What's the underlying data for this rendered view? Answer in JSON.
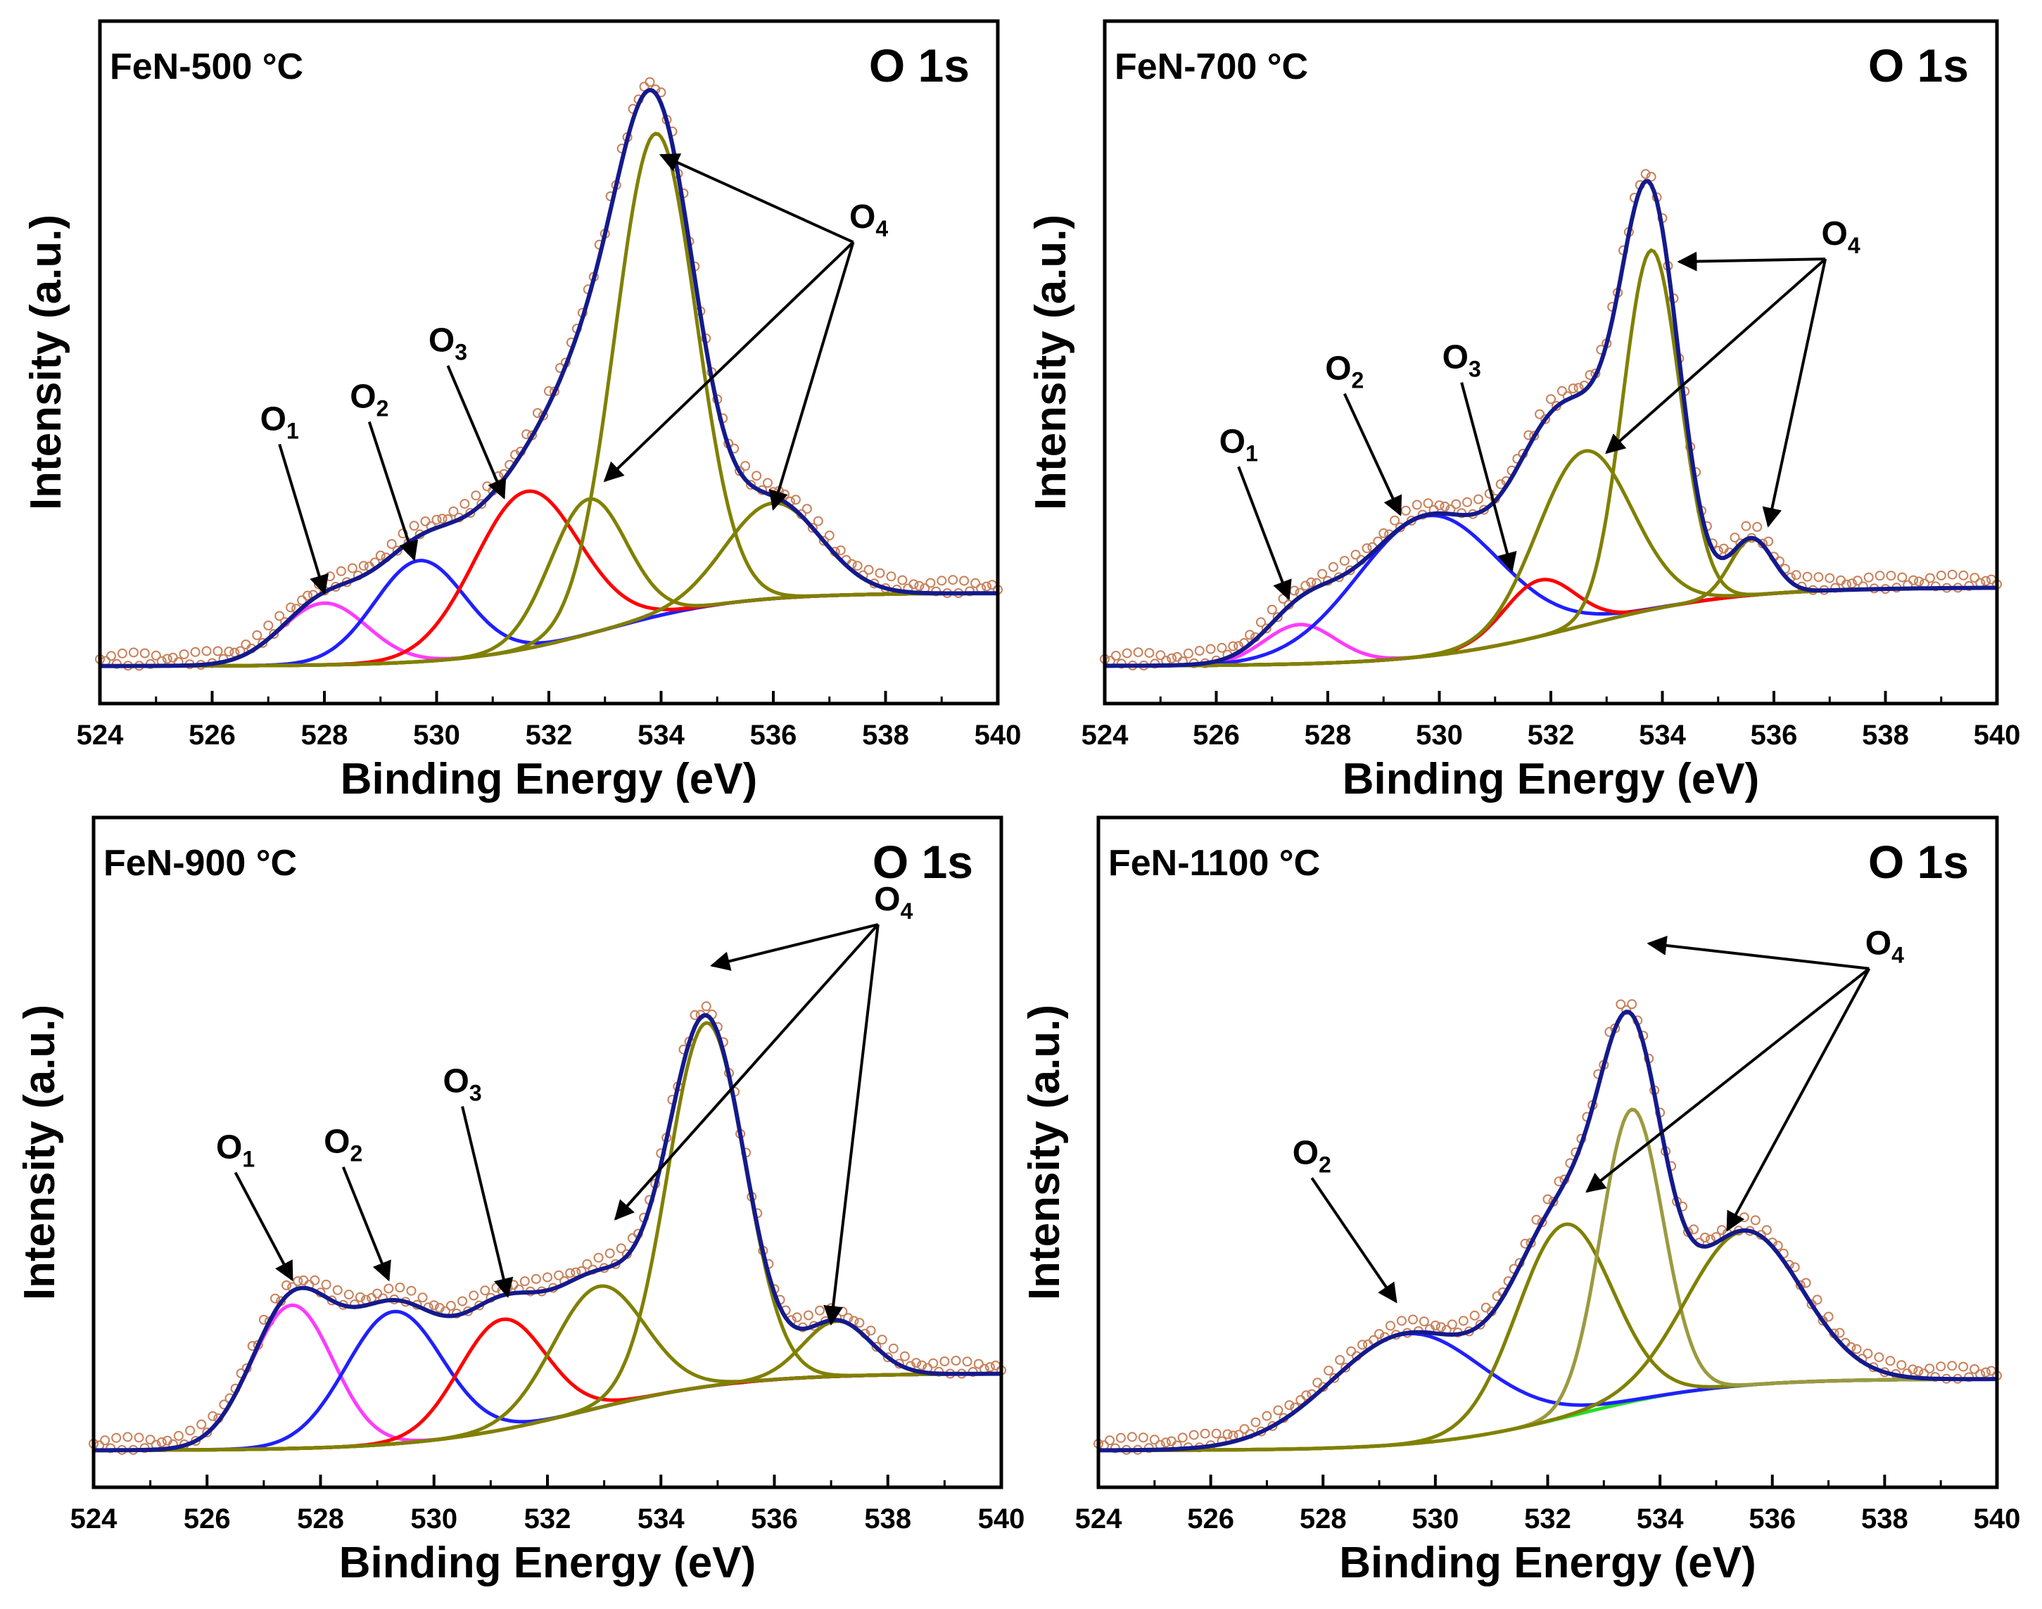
{
  "colors": {
    "frame": "#000000",
    "raw_marker": "#c8805a",
    "envelope": "#141a8c",
    "background": "#808000",
    "O1": "#ff3cff",
    "O2": "#2020ff",
    "O3": "#ff0000",
    "O4": "#808000",
    "O4_light": "#9a9a40",
    "background_1100": "#22e022"
  },
  "chart_data": [
    {
      "type": "line",
      "title": "O 1s",
      "sample": "FeN-500 °C",
      "xlabel": "Binding Energy (eV)",
      "ylabel": "Intensity (a.u.)",
      "xlim": [
        524,
        540
      ],
      "ylim": [
        0,
        1.1
      ],
      "xticks": [
        "524",
        "526",
        "528",
        "530",
        "532",
        "534",
        "536",
        "538",
        "540"
      ],
      "background": {
        "x0": 524,
        "y0": 0.0,
        "x1": 540,
        "y1": 0.13,
        "center": 533.0,
        "width": 1.2
      },
      "components": [
        {
          "name": "O1",
          "label": "O",
          "sub": "1",
          "color_key": "O1",
          "center": 528.0,
          "height": 0.11,
          "fwhm": 1.8
        },
        {
          "name": "O2",
          "label": "O",
          "sub": "2",
          "color_key": "O2",
          "center": 529.7,
          "height": 0.18,
          "fwhm": 1.9
        },
        {
          "name": "O3",
          "label": "O",
          "sub": "3",
          "color_key": "O3",
          "center": 531.6,
          "height": 0.28,
          "fwhm": 2.2
        },
        {
          "name": "O4a",
          "label": "O",
          "sub": "4",
          "color_key": "O4",
          "center": 532.7,
          "height": 0.24,
          "fwhm": 1.6
        },
        {
          "name": "O4b",
          "label": "O",
          "sub": "4",
          "color_key": "O4",
          "center": 533.9,
          "height": 0.86,
          "fwhm": 1.7
        },
        {
          "name": "O4c",
          "label": "O",
          "sub": "4",
          "color_key": "O4",
          "center": 536.0,
          "height": 0.17,
          "fwhm": 2.0
        }
      ],
      "annotations": [
        {
          "text": "O",
          "sub": "1",
          "tx": 527.2,
          "ty": 0.42,
          "targets": [
            [
              528.0,
              0.13
            ]
          ]
        },
        {
          "text": "O",
          "sub": "2",
          "tx": 528.8,
          "ty": 0.46,
          "targets": [
            [
              529.6,
              0.19
            ]
          ]
        },
        {
          "text": "O",
          "sub": "3",
          "tx": 530.2,
          "ty": 0.56,
          "targets": [
            [
              531.2,
              0.3
            ]
          ]
        },
        {
          "text": "O",
          "sub": "4",
          "tx": 537.7,
          "ty": 0.78,
          "targets": [
            [
              534.0,
              0.91
            ],
            [
              533.0,
              0.33
            ],
            [
              536.0,
              0.28
            ]
          ]
        }
      ]
    },
    {
      "type": "line",
      "title": "O 1s",
      "sample": "FeN-700 °C",
      "xlabel": "Binding Energy (eV)",
      "ylabel": "Intensity (a.u.)",
      "xlim": [
        524,
        540
      ],
      "ylim": [
        0,
        1.1
      ],
      "xticks": [
        "524",
        "526",
        "528",
        "530",
        "532",
        "534",
        "536",
        "538",
        "540"
      ],
      "background": {
        "x0": 524,
        "y0": 0.0,
        "x1": 540,
        "y1": 0.14,
        "center": 532.5,
        "width": 1.4
      },
      "components": [
        {
          "name": "O1",
          "label": "O",
          "sub": "1",
          "color_key": "O1",
          "center": 527.5,
          "height": 0.07,
          "fwhm": 1.5
        },
        {
          "name": "O2",
          "label": "O",
          "sub": "2",
          "color_key": "O2",
          "center": 529.8,
          "height": 0.25,
          "fwhm": 3.0
        },
        {
          "name": "O3",
          "label": "O",
          "sub": "3",
          "color_key": "O3",
          "center": 531.8,
          "height": 0.1,
          "fwhm": 1.5
        },
        {
          "name": "O4a",
          "label": "O",
          "sub": "4",
          "color_key": "O4",
          "center": 532.6,
          "height": 0.31,
          "fwhm": 2.0
        },
        {
          "name": "O4b",
          "label": "O",
          "sub": "4",
          "color_key": "O4",
          "center": 533.8,
          "height": 0.64,
          "fwhm": 1.2
        },
        {
          "name": "O4c",
          "label": "O",
          "sub": "4",
          "color_key": "O4",
          "center": 535.6,
          "height": 0.1,
          "fwhm": 0.9
        }
      ],
      "annotations": [
        {
          "text": "O",
          "sub": "1",
          "tx": 526.4,
          "ty": 0.38,
          "targets": [
            [
              527.3,
              0.12
            ]
          ]
        },
        {
          "text": "O",
          "sub": "2",
          "tx": 528.3,
          "ty": 0.51,
          "targets": [
            [
              529.3,
              0.27
            ]
          ]
        },
        {
          "text": "O",
          "sub": "3",
          "tx": 530.4,
          "ty": 0.53,
          "targets": [
            [
              531.3,
              0.17
            ]
          ]
        },
        {
          "text": "O",
          "sub": "4",
          "tx": 537.2,
          "ty": 0.75,
          "targets": [
            [
              534.3,
              0.72
            ],
            [
              533.0,
              0.38
            ],
            [
              535.9,
              0.25
            ]
          ]
        }
      ]
    },
    {
      "type": "line",
      "title": "O 1s",
      "sample": "FeN-900 °C",
      "xlabel": "Binding Energy (eV)",
      "ylabel": "Intensity (a.u.)",
      "xlim": [
        524,
        540
      ],
      "ylim": [
        0,
        1.1
      ],
      "xticks": [
        "524",
        "526",
        "528",
        "530",
        "532",
        "534",
        "536",
        "538",
        "540"
      ],
      "background": {
        "x0": 524,
        "y0": 0.0,
        "x1": 540,
        "y1": 0.14,
        "center": 532.6,
        "width": 1.4
      },
      "components": [
        {
          "name": "O1",
          "label": "O",
          "sub": "1",
          "color_key": "O1",
          "center": 527.5,
          "height": 0.26,
          "fwhm": 1.7
        },
        {
          "name": "O2",
          "label": "O",
          "sub": "2",
          "color_key": "O2",
          "center": 529.3,
          "height": 0.24,
          "fwhm": 2.0
        },
        {
          "name": "O3",
          "label": "O",
          "sub": "3",
          "color_key": "O3",
          "center": 531.2,
          "height": 0.2,
          "fwhm": 1.8
        },
        {
          "name": "O4a",
          "label": "O",
          "sub": "4",
          "color_key": "O4",
          "center": 532.9,
          "height": 0.22,
          "fwhm": 1.9
        },
        {
          "name": "O4b",
          "label": "O",
          "sub": "4",
          "color_key": "O4",
          "center": 534.8,
          "height": 0.66,
          "fwhm": 1.6
        },
        {
          "name": "O4c",
          "label": "O",
          "sub": "4",
          "color_key": "O4",
          "center": 537.1,
          "height": 0.1,
          "fwhm": 1.4
        }
      ],
      "annotations": [
        {
          "text": "O",
          "sub": "1",
          "tx": 526.5,
          "ty": 0.53,
          "targets": [
            [
              527.5,
              0.31
            ]
          ]
        },
        {
          "text": "O",
          "sub": "2",
          "tx": 528.4,
          "ty": 0.54,
          "targets": [
            [
              529.2,
              0.31
            ]
          ]
        },
        {
          "text": "O",
          "sub": "3",
          "tx": 530.5,
          "ty": 0.65,
          "targets": [
            [
              531.3,
              0.28
            ]
          ]
        },
        {
          "text": "O",
          "sub": "4",
          "tx": 538.1,
          "ty": 0.98,
          "targets": [
            [
              534.9,
              0.88
            ],
            [
              533.2,
              0.42
            ],
            [
              537.0,
              0.23
            ]
          ]
        }
      ]
    },
    {
      "type": "line",
      "title": "O 1s",
      "sample": "FeN-1100 °C",
      "xlabel": "Binding Energy (eV)",
      "ylabel": "Intensity (a.u.)",
      "xlim": [
        524,
        540
      ],
      "ylim": [
        0,
        1.1
      ],
      "xticks": [
        "524",
        "526",
        "528",
        "530",
        "532",
        "534",
        "536",
        "538",
        "540"
      ],
      "background": {
        "x0": 524,
        "y0": 0.0,
        "x1": 540,
        "y1": 0.13,
        "center": 532.5,
        "width": 1.3,
        "color_key": "background_1100"
      },
      "components": [
        {
          "name": "O2",
          "label": "O",
          "sub": "2",
          "color_key": "O2",
          "center": 529.5,
          "height": 0.2,
          "fwhm": 3.2
        },
        {
          "name": "O4a",
          "label": "O",
          "sub": "4",
          "color_key": "O4",
          "center": 532.3,
          "height": 0.35,
          "fwhm": 2.0
        },
        {
          "name": "O4b",
          "label": "O",
          "sub": "4",
          "color_key": "O4_light",
          "center": 533.5,
          "height": 0.53,
          "fwhm": 1.3
        },
        {
          "name": "O4c",
          "label": "O",
          "sub": "4",
          "color_key": "O4",
          "center": 535.5,
          "height": 0.28,
          "fwhm": 2.4
        }
      ],
      "annotations": [
        {
          "text": "O",
          "sub": "2",
          "tx": 527.8,
          "ty": 0.52,
          "targets": [
            [
              529.3,
              0.27
            ]
          ]
        },
        {
          "text": "O",
          "sub": "4",
          "tx": 538.0,
          "ty": 0.9,
          "targets": [
            [
              533.8,
              0.92
            ],
            [
              532.7,
              0.47
            ],
            [
              535.2,
              0.4
            ]
          ]
        }
      ]
    }
  ]
}
